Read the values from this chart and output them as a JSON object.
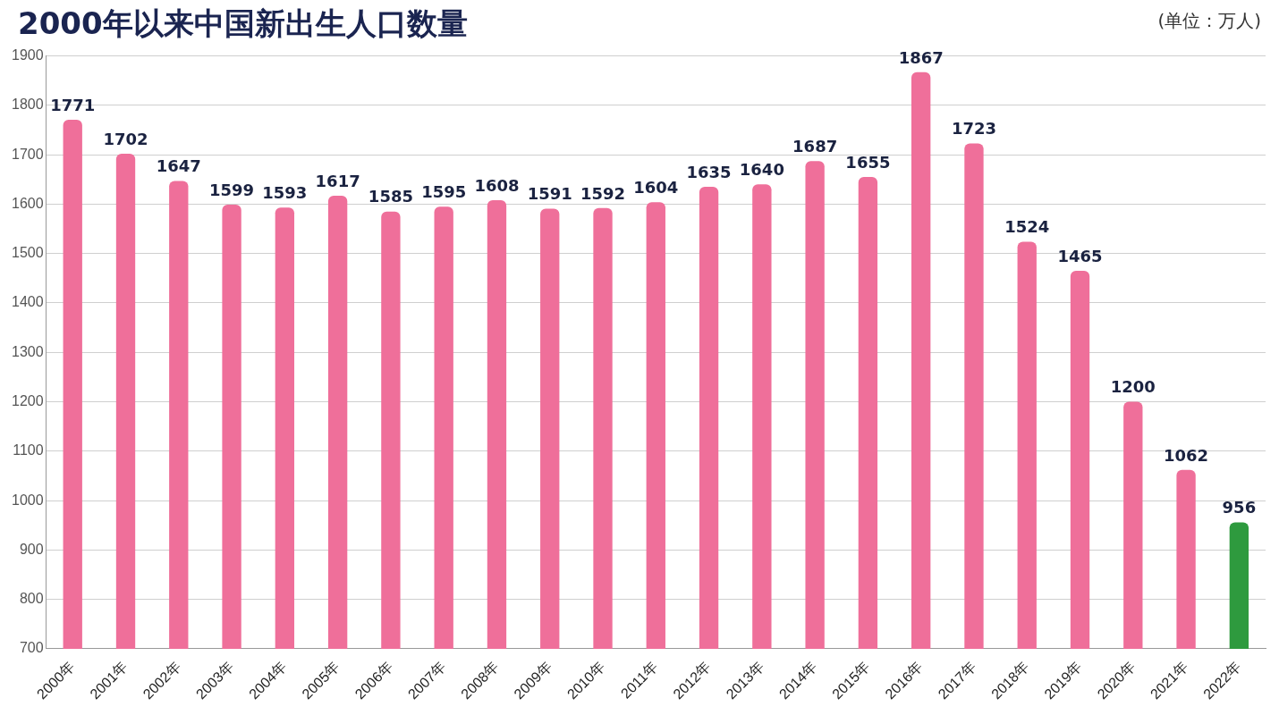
{
  "chart_data": {
    "type": "bar",
    "title": "2000年以来中国新出生人口数量",
    "annotations": [
      "(单位：万人)"
    ],
    "categories": [
      "2000年",
      "2001年",
      "2002年",
      "2003年",
      "2004年",
      "2005年",
      "2006年",
      "2007年",
      "2008年",
      "2009年",
      "2010年",
      "2011年",
      "2012年",
      "2013年",
      "2014年",
      "2015年",
      "2016年",
      "2017年",
      "2018年",
      "2019年",
      "2020年",
      "2021年",
      "2022年"
    ],
    "values": [
      1771,
      1702,
      1647,
      1599,
      1593,
      1617,
      1585,
      1595,
      1608,
      1591,
      1592,
      1604,
      1635,
      1640,
      1687,
      1655,
      1867,
      1723,
      1524,
      1465,
      1200,
      1062,
      956
    ],
    "colors": [
      "#ef6f9a",
      "#ef6f9a",
      "#ef6f9a",
      "#ef6f9a",
      "#ef6f9a",
      "#ef6f9a",
      "#ef6f9a",
      "#ef6f9a",
      "#ef6f9a",
      "#ef6f9a",
      "#ef6f9a",
      "#ef6f9a",
      "#ef6f9a",
      "#ef6f9a",
      "#ef6f9a",
      "#ef6f9a",
      "#ef6f9a",
      "#ef6f9a",
      "#ef6f9a",
      "#ef6f9a",
      "#ef6f9a",
      "#ef6f9a",
      "#2e9a3e"
    ],
    "ylim": [
      700,
      1900
    ],
    "yticks": [
      700,
      800,
      900,
      1000,
      1100,
      1200,
      1300,
      1400,
      1500,
      1600,
      1700,
      1800,
      1900
    ],
    "grid": "y",
    "data_labels": true
  }
}
